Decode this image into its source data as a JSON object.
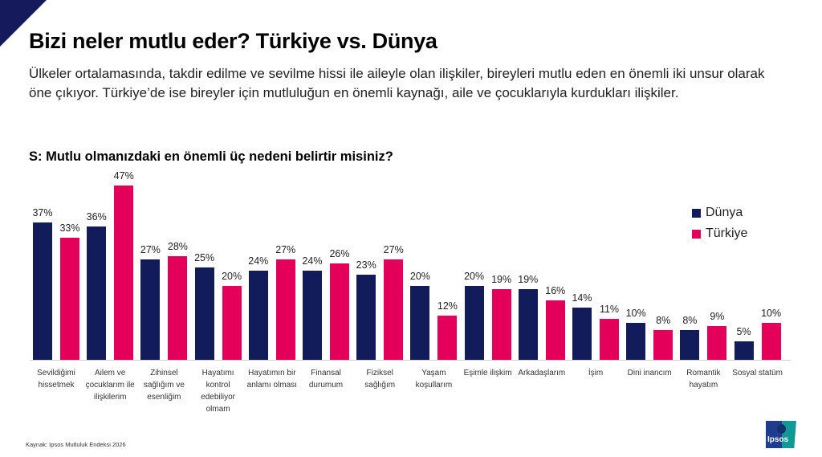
{
  "header": {
    "title": "Bizi neler mutlu eder? Türkiye vs. Dünya",
    "subtitle": "Ülkeler ortalamasında, takdir edilme ve sevilme hissi ile aileyle olan ilişkiler, bireyleri mutlu eden en önemli iki unsur olarak öne çıkıyor. Türkiye’de ise bireyler için mutluluğun en önemli kaynağı, aile ve çocuklarıyla kurdukları ilişkiler.",
    "question": "S: Mutlu olmanızdaki en önemli üç nedeni belirtir misiniz?"
  },
  "colors": {
    "dunya": "#131c5a",
    "turkiye": "#e4005a",
    "corner": "#141a5c"
  },
  "legend": {
    "dunya": "Dünya",
    "turkiye": "Türkiye"
  },
  "labels": {
    "d0": "37%",
    "t0": "33%",
    "d1": "36%",
    "t1": "47%",
    "d2": "27%",
    "t2": "28%",
    "d3": "25%",
    "t3": "20%",
    "d4": "24%",
    "t4": "27%",
    "d5": "24%",
    "t5": "26%",
    "d6": "23%",
    "t6": "27%",
    "d7": "20%",
    "t7": "12%",
    "d8": "20%",
    "t8": "19%",
    "d9": "19%",
    "t9": "16%",
    "d10": "14%",
    "t10": "11%",
    "d11": "10%",
    "t11": "8%",
    "d12": "8%",
    "t12": "9%",
    "d13": "5%",
    "t13": "10%"
  },
  "categories_text": [
    "Sevildiğimi hissetmek",
    "Ailem ve çocuklarım ile ilişkilerim",
    "Zihinsel sağlığım ve esenliğim",
    "Hayatımı kontrol edebiliyor olmam",
    "Hayatımın bir anlamı olması",
    "Finansal durumum",
    "Fiziksel sağlığım",
    "Yaşam koşullarım",
    "Eşimle ilişkim",
    "Arkadaşlarım",
    "İşim",
    "Dini inancım",
    "Romantik hayatım",
    "Sosyal statüm"
  ],
  "footer": {
    "source": "Kaynak: Ipsos Mutluluk Endeksi 2026",
    "logo_text": "Ipsos"
  },
  "chart_data": {
    "type": "bar",
    "title": "S: Mutlu olmanızdaki en önemli üç nedeni belirtir misiniz?",
    "categories": [
      "Sevildiğimi hissetmek",
      "Ailem ve çocuklarım ile ilişkilerim",
      "Zihinsel sağlığım ve esenliğim",
      "Hayatımı kontrol edebiliyor olmam",
      "Hayatımın bir anlamı olması",
      "Finansal durumum",
      "Fiziksel sağlığım",
      "Yaşam koşullarım",
      "Eşimle ilişkim",
      "Arkadaşlarım",
      "İşim",
      "Dini inancım",
      "Romantik hayatım",
      "Sosyal statüm"
    ],
    "series": [
      {
        "name": "Dünya",
        "color": "#131c5a",
        "values": [
          37,
          36,
          27,
          25,
          24,
          24,
          23,
          20,
          20,
          19,
          14,
          10,
          8,
          5
        ]
      },
      {
        "name": "Türkiye",
        "color": "#e4005a",
        "values": [
          33,
          47,
          28,
          20,
          27,
          26,
          27,
          12,
          19,
          16,
          11,
          8,
          9,
          10
        ]
      }
    ],
    "xlabel": "",
    "ylabel": "",
    "ylim": [
      0,
      50
    ],
    "unit": "%",
    "grid": false,
    "legend_position": "right",
    "data_labels": true
  }
}
